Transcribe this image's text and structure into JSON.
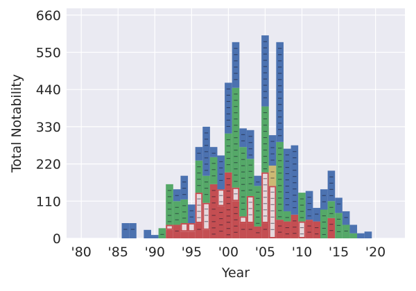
{
  "chart_data": {
    "type": "bar",
    "stacked": true,
    "xlabel": "Year",
    "ylabel": "Total Notability",
    "ylim": [
      0,
      680
    ],
    "xlim": [
      1978,
      2024
    ],
    "grid": true,
    "yticks": [
      0,
      110,
      220,
      330,
      440,
      550,
      660
    ],
    "xticks": [
      {
        "value": 1980,
        "label": "'80"
      },
      {
        "value": 1985,
        "label": "'85"
      },
      {
        "value": 1990,
        "label": "'90"
      },
      {
        "value": 1995,
        "label": "'95"
      },
      {
        "value": 2000,
        "label": "'00"
      },
      {
        "value": 2005,
        "label": "'05"
      },
      {
        "value": 2010,
        "label": "'10"
      },
      {
        "value": 2015,
        "label": "'15"
      },
      {
        "value": 2020,
        "label": "'20"
      }
    ],
    "x": [
      1986,
      1987,
      1989,
      1990,
      1991,
      1992,
      1993,
      1994,
      1995,
      1996,
      1997,
      1998,
      1999,
      2000,
      2001,
      2002,
      2003,
      2004,
      2005,
      2006,
      2007,
      2008,
      2009,
      2010,
      2011,
      2012,
      2013,
      2014,
      2015,
      2016,
      2017,
      2018,
      2019
    ],
    "series": [
      {
        "color": "#c44e52",
        "values": [
          0,
          0,
          0,
          0,
          0,
          25,
          40,
          20,
          20,
          45,
          25,
          160,
          95,
          195,
          110,
          45,
          45,
          35,
          45,
          0,
          55,
          50,
          70,
          0,
          55,
          50,
          0,
          60,
          0,
          0,
          0,
          0,
          0
        ]
      },
      {
        "color": "#e6d8dc",
        "values": [
          0,
          0,
          0,
          0,
          0,
          15,
          0,
          25,
          25,
          90,
          80,
          0,
          50,
          0,
          40,
          20,
          80,
          0,
          150,
          155,
          0,
          0,
          0,
          50,
          0,
          0,
          0,
          0,
          0,
          0,
          0,
          0,
          0
        ]
      },
      {
        "color": "#ccb974",
        "values": [
          0,
          0,
          0,
          0,
          0,
          0,
          0,
          0,
          0,
          0,
          0,
          0,
          0,
          0,
          0,
          0,
          0,
          0,
          0,
          60,
          0,
          0,
          0,
          0,
          0,
          0,
          0,
          0,
          0,
          0,
          0,
          0,
          0
        ]
      },
      {
        "color": "#55a868",
        "values": [
          0,
          0,
          0,
          0,
          30,
          120,
          70,
          70,
          0,
          95,
          80,
          80,
          0,
          115,
          295,
          205,
          110,
          120,
          195,
          0,
          230,
          30,
          0,
          85,
          0,
          0,
          85,
          50,
          75,
          40,
          15,
          0,
          0
        ]
      },
      {
        "color": "#4c72b0",
        "values": [
          45,
          45,
          25,
          10,
          0,
          0,
          35,
          70,
          55,
          40,
          145,
          30,
          100,
          150,
          135,
          55,
          85,
          30,
          210,
          90,
          295,
          185,
          205,
          0,
          85,
          40,
          60,
          90,
          45,
          40,
          25,
          15,
          20
        ]
      }
    ]
  }
}
